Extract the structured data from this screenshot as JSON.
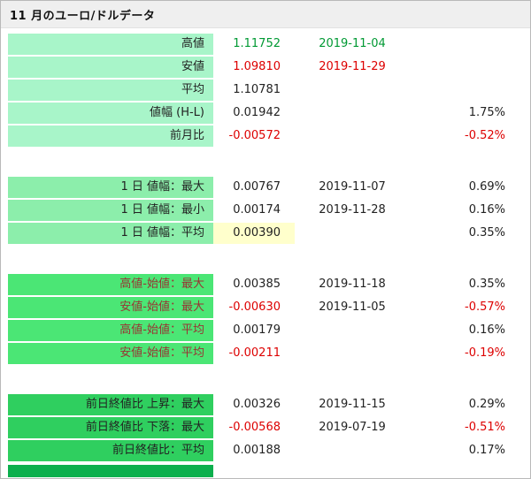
{
  "title": "11 月のユーロ/ドルデータ",
  "colors": {
    "headbg": "#efefef",
    "g1": "#a8f5c9",
    "g2": "#8ceeab",
    "g3": "#4be675",
    "g4": "#2fcf5f",
    "g5": "#0caf4d",
    "pos": "#009933",
    "neg": "#dd0000",
    "labred": "#993333",
    "hl": "#ffffcc"
  },
  "table": {
    "groups": [
      {
        "name": "monthly-summary",
        "rows": [
          {
            "label": "高値",
            "value": "1.11752",
            "date": "2019-11-04",
            "pct": ""
          },
          {
            "label": "安値",
            "value": "1.09810",
            "date": "2019-11-29",
            "pct": ""
          },
          {
            "label": "平均",
            "value": "1.10781",
            "date": "",
            "pct": ""
          },
          {
            "label": "値幅 (H-L)",
            "value": "0.01942",
            "date": "",
            "pct": "1.75%"
          },
          {
            "label": "前月比",
            "value": "-0.00572",
            "date": "",
            "pct": "-0.52%"
          }
        ]
      },
      {
        "name": "daily-range",
        "rows": [
          {
            "label": "1 日 値幅：最大",
            "value": "0.00767",
            "date": "2019-11-07",
            "pct": "0.69%"
          },
          {
            "label": "1 日 値幅：最小",
            "value": "0.00174",
            "date": "2019-11-28",
            "pct": "0.16%"
          },
          {
            "label": "1 日 値幅：平均",
            "value": "0.00390",
            "date": "",
            "pct": "0.35%"
          }
        ]
      },
      {
        "name": "high-low-vs-open",
        "rows": [
          {
            "label": "高値-始値：最大",
            "value": "0.00385",
            "date": "2019-11-18",
            "pct": "0.35%"
          },
          {
            "label": "安値-始値：最大",
            "value": "-0.00630",
            "date": "2019-11-05",
            "pct": "-0.57%"
          },
          {
            "label": "高値-始値：平均",
            "value": "0.00179",
            "date": "",
            "pct": "0.16%"
          },
          {
            "label": "安値-始値：平均",
            "value": "-0.00211",
            "date": "",
            "pct": "-0.19%"
          }
        ]
      },
      {
        "name": "vs-previous-close",
        "rows": [
          {
            "label": "前日終値比 上昇：最大",
            "value": "0.00326",
            "date": "2019-11-15",
            "pct": "0.29%"
          },
          {
            "label": "前日終値比 下落：最大",
            "value": "-0.00568",
            "date": "2019-07-19",
            "pct": "-0.51%"
          },
          {
            "label": "前日終値比：平均",
            "value": "0.00188",
            "date": "",
            "pct": "0.17%"
          }
        ]
      }
    ]
  }
}
